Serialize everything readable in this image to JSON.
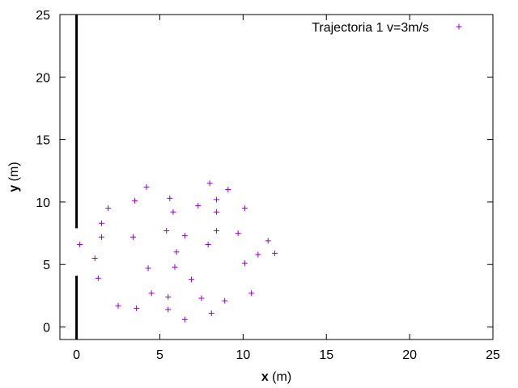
{
  "chart_data": {
    "type": "scatter",
    "title": "",
    "xlabel": {
      "bold": "x",
      "rest": " (m)"
    },
    "ylabel": {
      "bold": "y",
      "rest": " (m)"
    },
    "xlim": [
      -1,
      25
    ],
    "ylim": [
      -1,
      25
    ],
    "xticks": [
      0,
      5,
      10,
      15,
      20,
      25
    ],
    "yticks": [
      0,
      5,
      10,
      15,
      20,
      25
    ],
    "grid": false,
    "legend": {
      "position": "top-right"
    },
    "series": [
      {
        "name": "Trajectoria 1 v=3m/s",
        "marker": "+",
        "color": "#9400D3",
        "points": [
          [
            0.2,
            6.6
          ],
          [
            1.1,
            5.5
          ],
          [
            1.3,
            3.9
          ],
          [
            1.5,
            7.2
          ],
          [
            1.5,
            8.3
          ],
          [
            1.9,
            9.5
          ],
          [
            2.5,
            1.7
          ],
          [
            3.4,
            7.2
          ],
          [
            3.5,
            10.1
          ],
          [
            3.6,
            1.5
          ],
          [
            4.2,
            11.2
          ],
          [
            4.3,
            4.7
          ],
          [
            4.5,
            2.7
          ],
          [
            5.4,
            7.7
          ],
          [
            5.5,
            2.4
          ],
          [
            5.5,
            1.4
          ],
          [
            5.6,
            10.3
          ],
          [
            5.8,
            9.2
          ],
          [
            5.9,
            4.8
          ],
          [
            6.0,
            6.0
          ],
          [
            6.5,
            0.6
          ],
          [
            6.5,
            7.3
          ],
          [
            6.9,
            3.8
          ],
          [
            7.3,
            9.7
          ],
          [
            7.5,
            2.3
          ],
          [
            7.9,
            6.6
          ],
          [
            8.0,
            11.5
          ],
          [
            8.1,
            1.1
          ],
          [
            8.4,
            7.7
          ],
          [
            8.4,
            9.2
          ],
          [
            8.4,
            10.2
          ],
          [
            8.9,
            2.1
          ],
          [
            9.1,
            11.0
          ],
          [
            9.7,
            7.5
          ],
          [
            10.1,
            5.1
          ],
          [
            10.1,
            9.5
          ],
          [
            10.5,
            2.7
          ],
          [
            10.9,
            5.8
          ],
          [
            11.5,
            6.9
          ],
          [
            11.9,
            5.9
          ]
        ]
      }
    ],
    "walls": [
      {
        "x": 0,
        "y_from": -1,
        "y_to": 4.1
      },
      {
        "x": 0,
        "y_from": 7.9,
        "y_to": 25
      }
    ]
  }
}
